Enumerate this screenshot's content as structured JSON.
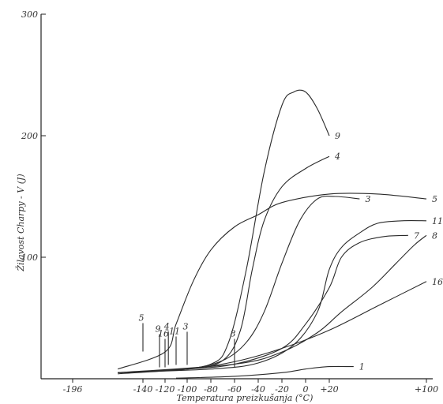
{
  "chart_data": {
    "type": "line",
    "title": "",
    "xlabel": "Temperatura preizkušanja (°C)",
    "ylabel": "Žilavost Charpy - V (J)",
    "ylim": [
      0,
      300
    ],
    "x_ticks": [
      {
        "v": -196,
        "label": "-196"
      },
      {
        "v": -140,
        "label": "-140"
      },
      {
        "v": -120,
        "label": "-120"
      },
      {
        "v": -100,
        "label": "-100"
      },
      {
        "v": -80,
        "label": "-80"
      },
      {
        "v": -60,
        "label": "-60"
      },
      {
        "v": -40,
        "label": "-40"
      },
      {
        "v": -20,
        "label": "-20"
      },
      {
        "v": 0,
        "label": "0"
      },
      {
        "v": 20,
        "label": "+20"
      },
      {
        "v": 100,
        "label": "+100"
      }
    ],
    "y_ticks": [
      {
        "v": 100,
        "label": "100"
      },
      {
        "v": 200,
        "label": "200"
      },
      {
        "v": 300,
        "label": "300"
      }
    ],
    "grid": false,
    "legend": "none",
    "series": [
      {
        "name": "9",
        "x": [
          -160,
          -120,
          -80,
          -65,
          -50,
          -35,
          -20,
          -10,
          0,
          10,
          20
        ],
        "y": [
          5,
          7,
          12,
          30,
          90,
          170,
          225,
          236,
          236,
          222,
          200
        ]
      },
      {
        "name": "4",
        "x": [
          -160,
          -100,
          -70,
          -55,
          -45,
          -35,
          -20,
          0,
          20
        ],
        "y": [
          5,
          8,
          15,
          40,
          90,
          130,
          158,
          173,
          183
        ]
      },
      {
        "name": "3",
        "x": [
          -160,
          -100,
          -70,
          -50,
          -35,
          -20,
          -5,
          10,
          25,
          45
        ],
        "y": [
          5,
          8,
          15,
          30,
          55,
          95,
          130,
          148,
          150,
          148
        ]
      },
      {
        "name": "5",
        "x": [
          -160,
          -120,
          -110,
          -95,
          -80,
          -60,
          -40,
          -20,
          20,
          60,
          100
        ],
        "y": [
          8,
          22,
          45,
          80,
          106,
          125,
          135,
          145,
          152,
          152,
          148
        ]
      },
      {
        "name": "11",
        "x": [
          -160,
          -80,
          -40,
          -10,
          10,
          20,
          30,
          45,
          60,
          80,
          100
        ],
        "y": [
          5,
          8,
          13,
          28,
          55,
          90,
          108,
          120,
          128,
          130,
          130
        ]
      },
      {
        "name": "7",
        "x": [
          -160,
          -100,
          -60,
          -20,
          0,
          20,
          30,
          45,
          65,
          85
        ],
        "y": [
          5,
          8,
          12,
          25,
          45,
          75,
          100,
          112,
          117,
          118
        ]
      },
      {
        "name": "8",
        "x": [
          -160,
          -60,
          -20,
          10,
          30,
          55,
          75,
          90,
          100
        ],
        "y": [
          5,
          12,
          22,
          38,
          55,
          75,
          95,
          110,
          118
        ]
      },
      {
        "name": "16",
        "x": [
          -160,
          -100,
          -60,
          -20,
          20,
          60,
          100
        ],
        "y": [
          4,
          8,
          14,
          25,
          40,
          60,
          80
        ]
      },
      {
        "name": "1",
        "x": [
          -110,
          -60,
          -20,
          0,
          20,
          40
        ],
        "y": [
          0.5,
          2,
          5,
          8,
          10,
          10
        ]
      }
    ],
    "markers": [
      {
        "name": "5",
        "x": -140,
        "y": 25
      },
      {
        "name": "9",
        "x": -125,
        "y": 12
      },
      {
        "name": "16",
        "x": -120,
        "y": 12
      },
      {
        "name": "4",
        "x": -117,
        "y": 14
      },
      {
        "name": "11",
        "x": -110,
        "y": 14
      },
      {
        "name": "3",
        "x": -100,
        "y": 14
      },
      {
        "name": "8",
        "x": -60,
        "y": 12
      }
    ]
  }
}
